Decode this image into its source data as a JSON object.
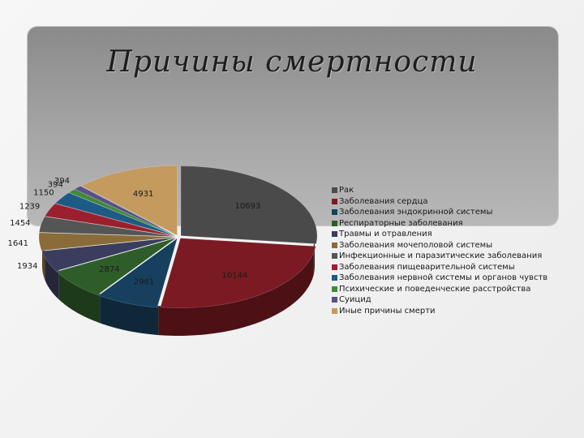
{
  "title": "Причины смертности",
  "chart_data": {
    "type": "pie",
    "title": "Причины смертности",
    "legend_position": "right",
    "slices": [
      {
        "name": "Рак",
        "value": 10693,
        "color": "#4a4a4a"
      },
      {
        "name": "Заболевания сердца",
        "value": 10144,
        "color": "#7b1a22"
      },
      {
        "name": "Заболевания эндокринной системы",
        "value": 2961,
        "color": "#17405e"
      },
      {
        "name": "Респираторные заболевания",
        "value": 2874,
        "color": "#2f5d2a"
      },
      {
        "name": "Травмы и отравления",
        "value": 1934,
        "color": "#3b3d5e"
      },
      {
        "name": "Заболевания мочеполовой системы",
        "value": 1641,
        "color": "#8a6c3a"
      },
      {
        "name": "Инфекционные и паразитические заболевания",
        "value": 1454,
        "color": "#555555"
      },
      {
        "name": "Заболевания пищеварительной системы",
        "value": 1239,
        "color": "#9c1f2e"
      },
      {
        "name": "Заболевания нервной системы и органов чувств",
        "value": 1150,
        "color": "#1d5b85"
      },
      {
        "name": "Психические и поведенческие расстройства",
        "value": 394,
        "color": "#3f8a3a"
      },
      {
        "name": "Суицид",
        "value": 394,
        "color": "#5a4f86"
      },
      {
        "name": "Иные причины смерти",
        "value": 4931,
        "color": "#c49a5f"
      }
    ]
  }
}
